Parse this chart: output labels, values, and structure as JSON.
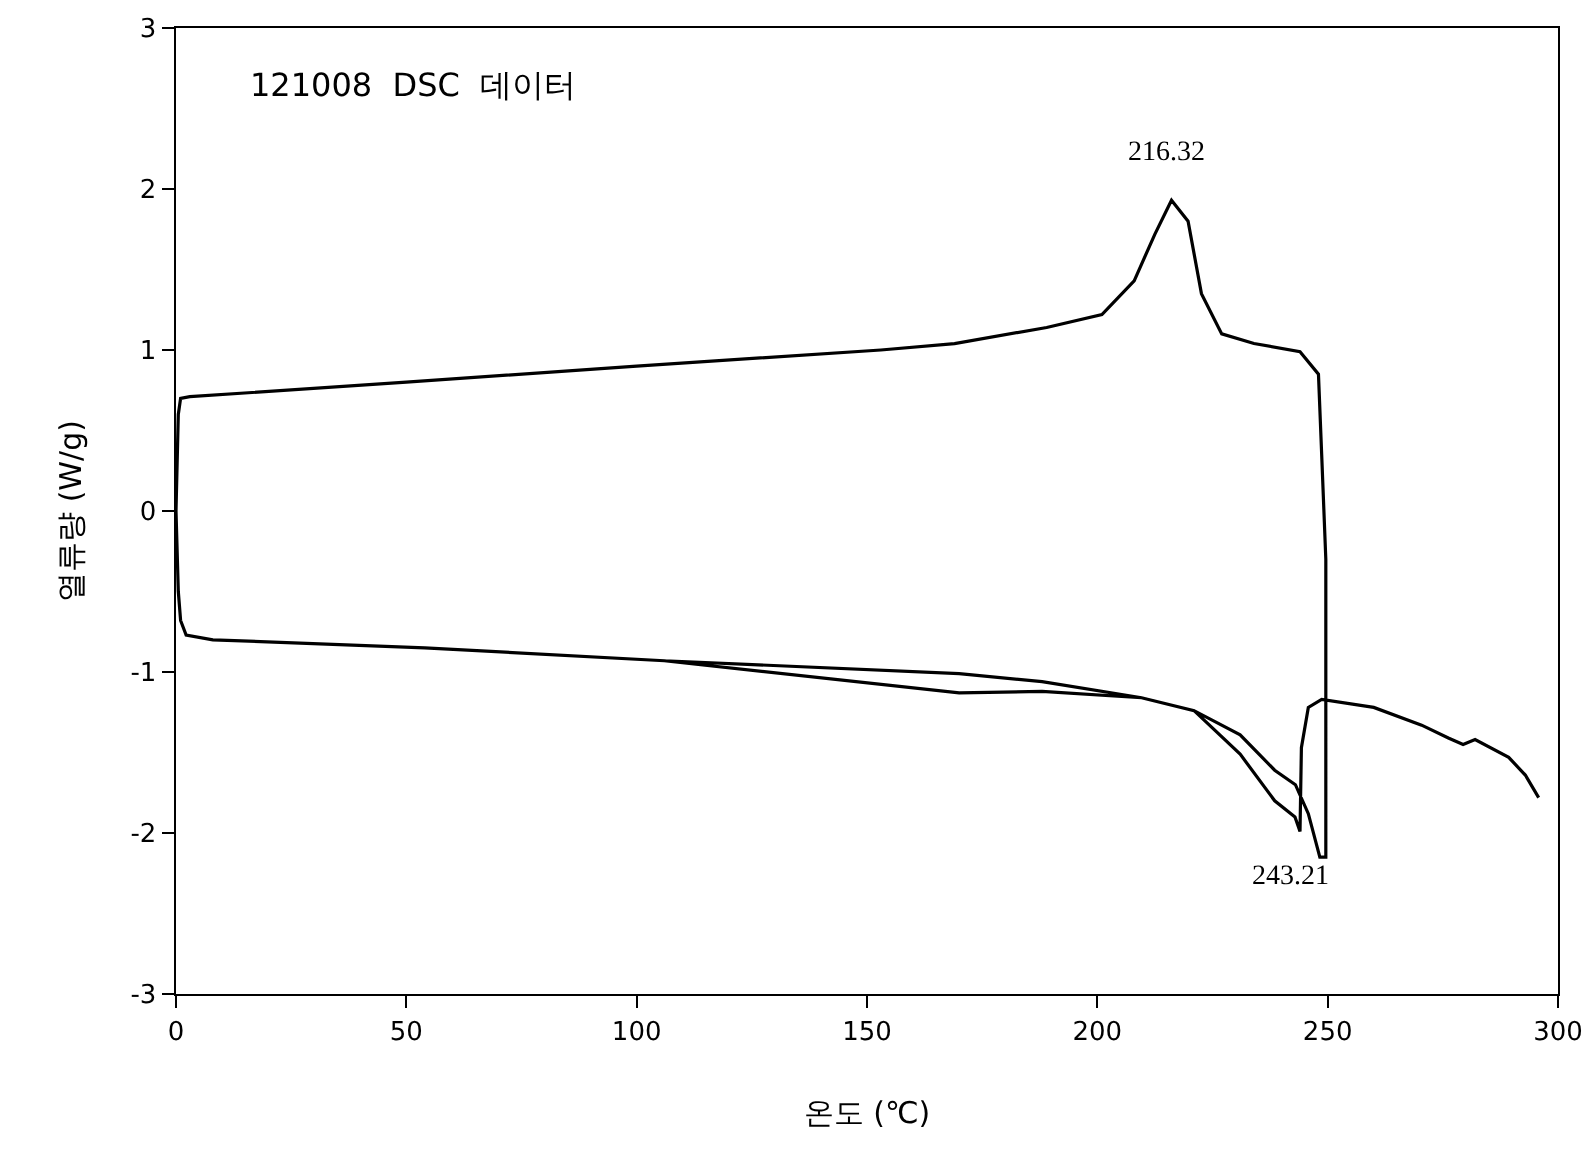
{
  "chart_data": {
    "type": "line",
    "title": "121008  DSC  데이터",
    "xlabel": "온도 (℃)",
    "ylabel": "열류량 (W/g)",
    "xlim": [
      0,
      300
    ],
    "xticks": [
      0,
      50,
      100,
      150,
      200,
      250,
      300
    ],
    "ylim": [
      -3,
      3
    ],
    "yticks": [
      -3,
      -2,
      -1,
      0,
      1,
      2,
      3
    ],
    "grid": false,
    "marker": "none",
    "line_style": "solid",
    "series": [
      {
        "color": "#000000",
        "x": [
          295.8,
          292.9,
          289.3,
          282,
          279.4,
          276.2,
          270.4,
          260,
          248.7,
          245.8,
          244.3,
          244,
          242.9,
          238.5,
          231,
          221,
          209.6,
          188,
          170,
          106,
          54,
          8,
          2.2,
          1,
          0.5,
          0,
          0.5,
          1,
          3,
          50,
          100,
          153,
          169,
          189,
          201,
          208,
          212.5,
          216.1,
          219.7,
          222.6,
          227,
          234,
          244,
          248,
          248.7,
          249.6,
          249.6,
          248.3,
          245.8,
          243,
          238.5,
          231,
          221,
          209.6,
          188,
          170,
          106,
          54,
          8,
          2.2,
          1
        ],
        "values": [
          -1.78,
          -1.64,
          -1.53,
          -1.42,
          -1.45,
          -1.41,
          -1.33,
          -1.22,
          -1.17,
          -1.22,
          -1.47,
          -1.99,
          -1.9,
          -1.8,
          -1.51,
          -1.24,
          -1.16,
          -1.12,
          -1.13,
          -0.93,
          -0.85,
          -0.8,
          -0.77,
          -0.68,
          -0.5,
          0,
          0.6,
          0.7,
          0.71,
          0.8,
          0.9,
          1.0,
          1.04,
          1.14,
          1.22,
          1.43,
          1.72,
          1.93,
          1.8,
          1.35,
          1.1,
          1.04,
          0.99,
          0.85,
          0.35,
          -0.3,
          -2.15,
          -2.15,
          -1.88,
          -1.7,
          -1.61,
          -1.39,
          -1.24,
          -1.16,
          -1.06,
          -1.01,
          -0.93,
          -0.85,
          -0.8,
          -0.77,
          -0.68
        ]
      }
    ],
    "annotations": [
      {
        "text": "216.32",
        "x": 216.32,
        "y": 1.93
      },
      {
        "text": "243.21",
        "x": 243.21,
        "y": -2.0
      }
    ]
  }
}
